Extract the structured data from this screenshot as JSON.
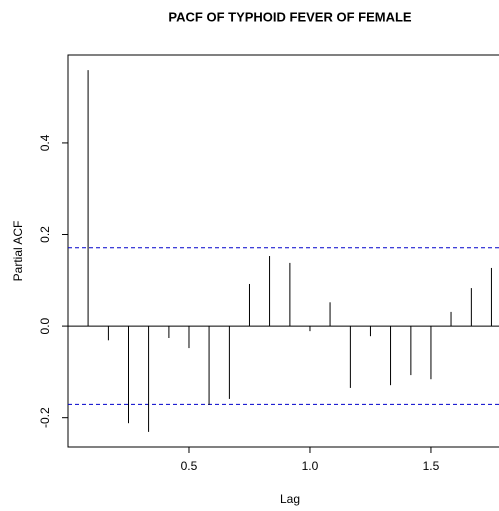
{
  "chart_data": {
    "type": "pacf",
    "title": "PACF OF TYPHOID FEVER OF FEMALE",
    "x_label": "Lag",
    "y_label": "Partial ACF",
    "x": [
      0.083,
      0.167,
      0.25,
      0.333,
      0.417,
      0.5,
      0.583,
      0.667,
      0.75,
      0.833,
      0.917,
      1.0,
      1.083,
      1.167,
      1.25,
      1.333,
      1.417,
      1.5,
      1.583,
      1.667,
      1.75
    ],
    "values": [
      0.559,
      -0.031,
      -0.212,
      -0.231,
      -0.026,
      -0.048,
      -0.172,
      -0.159,
      0.092,
      0.153,
      0.138,
      -0.011,
      0.052,
      -0.135,
      -0.022,
      -0.129,
      -0.107,
      -0.116,
      0.031,
      0.083,
      0.127
    ],
    "color": "#000000",
    "confidence_bounds": [
      0.171,
      -0.171
    ],
    "bound_color": "#0000cc",
    "xlim": [
      0,
      1.78
    ],
    "ylim": [
      -0.264,
      0.592
    ],
    "xticks": [
      {
        "value": 0.5,
        "label": "0.5"
      },
      {
        "value": 1.0,
        "label": "1.0"
      },
      {
        "value": 1.5,
        "label": "1.5"
      }
    ],
    "yticks": [
      {
        "value": -0.2,
        "label": "-0.2"
      },
      {
        "value": 0.0,
        "label": "0.0"
      },
      {
        "value": 0.2,
        "label": "0.2"
      },
      {
        "value": 0.4,
        "label": "0.4"
      }
    ]
  }
}
